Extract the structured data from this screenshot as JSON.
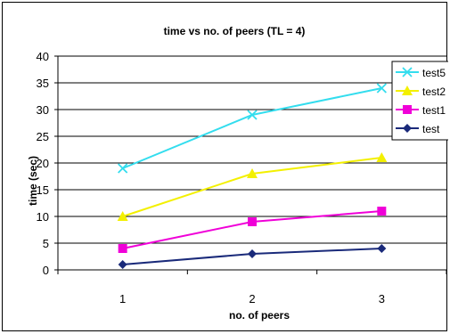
{
  "chart_data": {
    "type": "line",
    "title": "time vs no. of peers (TL = 4)",
    "xlabel": "no. of peers",
    "ylabel": "time (sec)",
    "categories": [
      "1",
      "2",
      "3"
    ],
    "ylim": [
      0,
      40
    ],
    "yticks": [
      0,
      5,
      10,
      15,
      20,
      25,
      30,
      35,
      40
    ],
    "grid": true,
    "legend_position": "right",
    "series": [
      {
        "name": "test5",
        "values": [
          19,
          29,
          34
        ],
        "color": "#33ddee",
        "marker": "x-mark"
      },
      {
        "name": "test2",
        "values": [
          10,
          18,
          21
        ],
        "color": "#f3f000",
        "marker": "triangle"
      },
      {
        "name": "test1",
        "values": [
          4,
          9,
          11
        ],
        "color": "#f000d8",
        "marker": "square"
      },
      {
        "name": "test",
        "values": [
          1,
          3,
          4
        ],
        "color": "#1a2a7a",
        "marker": "diamond"
      }
    ]
  }
}
